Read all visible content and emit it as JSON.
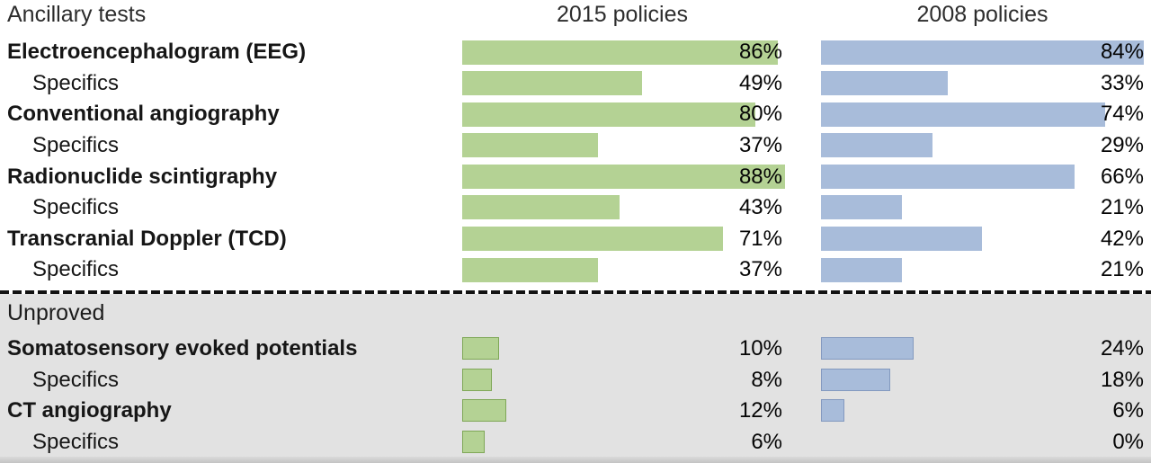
{
  "figure": {
    "header": {
      "left": "Ancillary tests",
      "col_2015": "2015 policies",
      "col_2008": "2008 policies"
    },
    "unproved_label": "Unproved"
  },
  "colors": {
    "bar_2015": "#b4d294",
    "bar_2015_border": "#7fa757",
    "bar_2008": "#a8bcda",
    "bar_2008_border": "#8399bf",
    "unproved_section_bg": "#e2e2e2",
    "divider": "#121212",
    "text": "#1c1c1c"
  },
  "chart_data": {
    "type": "bar",
    "orientation": "horizontal",
    "title": "Ancillary tests",
    "xlabel": "",
    "ylabel": "",
    "xlim": [
      0,
      100
    ],
    "grid": false,
    "legend_position": "column-headers",
    "value_suffix": "%",
    "categories": [
      "Electroencephalogram (EEG)",
      "Specifics",
      "Conventional angiography",
      "Specifics",
      "Radionuclide scintigraphy",
      "Specifics",
      "Transcranial Doppler (TCD)",
      "Specifics",
      "Somatosensory evoked potentials",
      "Specifics",
      "CT angiography",
      "Specifics"
    ],
    "series": [
      {
        "name": "2015 policies",
        "color": "#b4d294",
        "values": [
          86,
          49,
          80,
          37,
          88,
          43,
          71,
          37,
          10,
          8,
          12,
          6
        ]
      },
      {
        "name": "2008 policies",
        "color": "#a8bcda",
        "values": [
          84,
          33,
          74,
          29,
          66,
          21,
          42,
          21,
          24,
          18,
          6,
          0
        ]
      }
    ],
    "sections": [
      {
        "label": "",
        "row_start": 0,
        "row_end": 7
      },
      {
        "label": "Unproved",
        "row_start": 8,
        "row_end": 11
      }
    ]
  }
}
